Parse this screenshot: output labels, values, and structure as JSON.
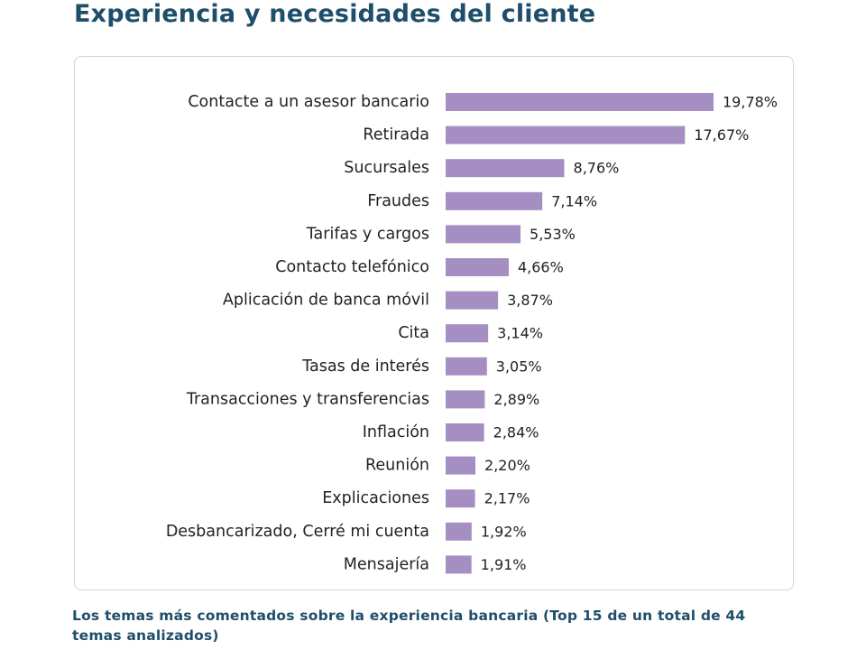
{
  "title": "Experiencia y necesidades del cliente",
  "caption": "Los temas más comentados sobre la experiencia bancaria (Top 15 de un total de 44 temas analizados)",
  "colors": {
    "bar": "#a58fc2",
    "title": "#1f4e6b",
    "text": "#222222"
  },
  "chart_data": {
    "type": "bar",
    "orientation": "horizontal",
    "categories": [
      "Contacte a un asesor bancario",
      "Retirada",
      "Sucursales",
      "Fraudes",
      "Tarifas y cargos",
      "Contacto telefónico",
      "Aplicación de banca móvil",
      "Cita",
      "Tasas de interés",
      "Transacciones y transferencias",
      "Inflación",
      "Reunión",
      "Explicaciones",
      "Desbancarizado, Cerré mi cuenta",
      "Mensajería"
    ],
    "values": [
      19.78,
      17.67,
      8.76,
      7.14,
      5.53,
      4.66,
      3.87,
      3.14,
      3.05,
      2.89,
      2.84,
      2.2,
      2.17,
      1.92,
      1.91
    ],
    "value_labels": [
      "19,78%",
      "17,67%",
      "8,76%",
      "7,14%",
      "5,53%",
      "4,66%",
      "3,87%",
      "3,14%",
      "3,05%",
      "2,89%",
      "2,84%",
      "2,20%",
      "2,17%",
      "1,92%",
      "1,91%"
    ],
    "grid": false,
    "xlim": [
      0,
      19.78
    ]
  }
}
